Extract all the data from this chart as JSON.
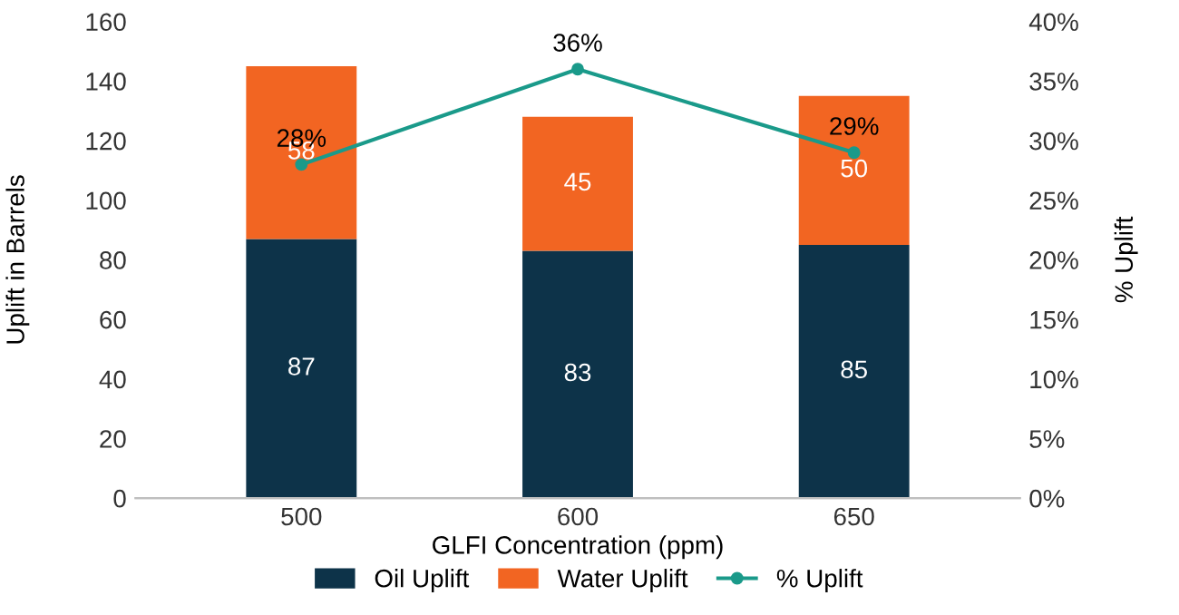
{
  "chart_data": {
    "type": "bar",
    "stacked": true,
    "xlabel": "GLFI Concentration (ppm)",
    "ylabel": "Uplift in Barrels",
    "y2label": "% Uplift",
    "categories": [
      "500",
      "600",
      "650"
    ],
    "series": [
      {
        "name": "Oil Uplift",
        "color": "#0d3349",
        "values": [
          87,
          83,
          85
        ]
      },
      {
        "name": "Water Uplift",
        "color": "#f26522",
        "values": [
          58,
          45,
          50
        ]
      },
      {
        "name": "% Uplift",
        "type": "line",
        "axis": "y2",
        "color": "#1a9a8a",
        "marker": "circle",
        "values": [
          28,
          36,
          29
        ],
        "value_labels": [
          "28%",
          "36%",
          "29%"
        ]
      }
    ],
    "data_labels": true,
    "ylim": [
      0,
      160
    ],
    "yticks": [
      0,
      20,
      40,
      60,
      80,
      100,
      120,
      140,
      160
    ],
    "y2lim": [
      0,
      40
    ],
    "y2ticks": [
      {
        "value": 0,
        "label": "0%"
      },
      {
        "value": 5,
        "label": "5%"
      },
      {
        "value": 10,
        "label": "10%"
      },
      {
        "value": 15,
        "label": "15%"
      },
      {
        "value": 20,
        "label": "20%"
      },
      {
        "value": 25,
        "label": "25%"
      },
      {
        "value": 30,
        "label": "30%"
      },
      {
        "value": 35,
        "label": "35%"
      },
      {
        "value": 40,
        "label": "40%"
      }
    ],
    "legend": "bottom",
    "grid": false
  }
}
